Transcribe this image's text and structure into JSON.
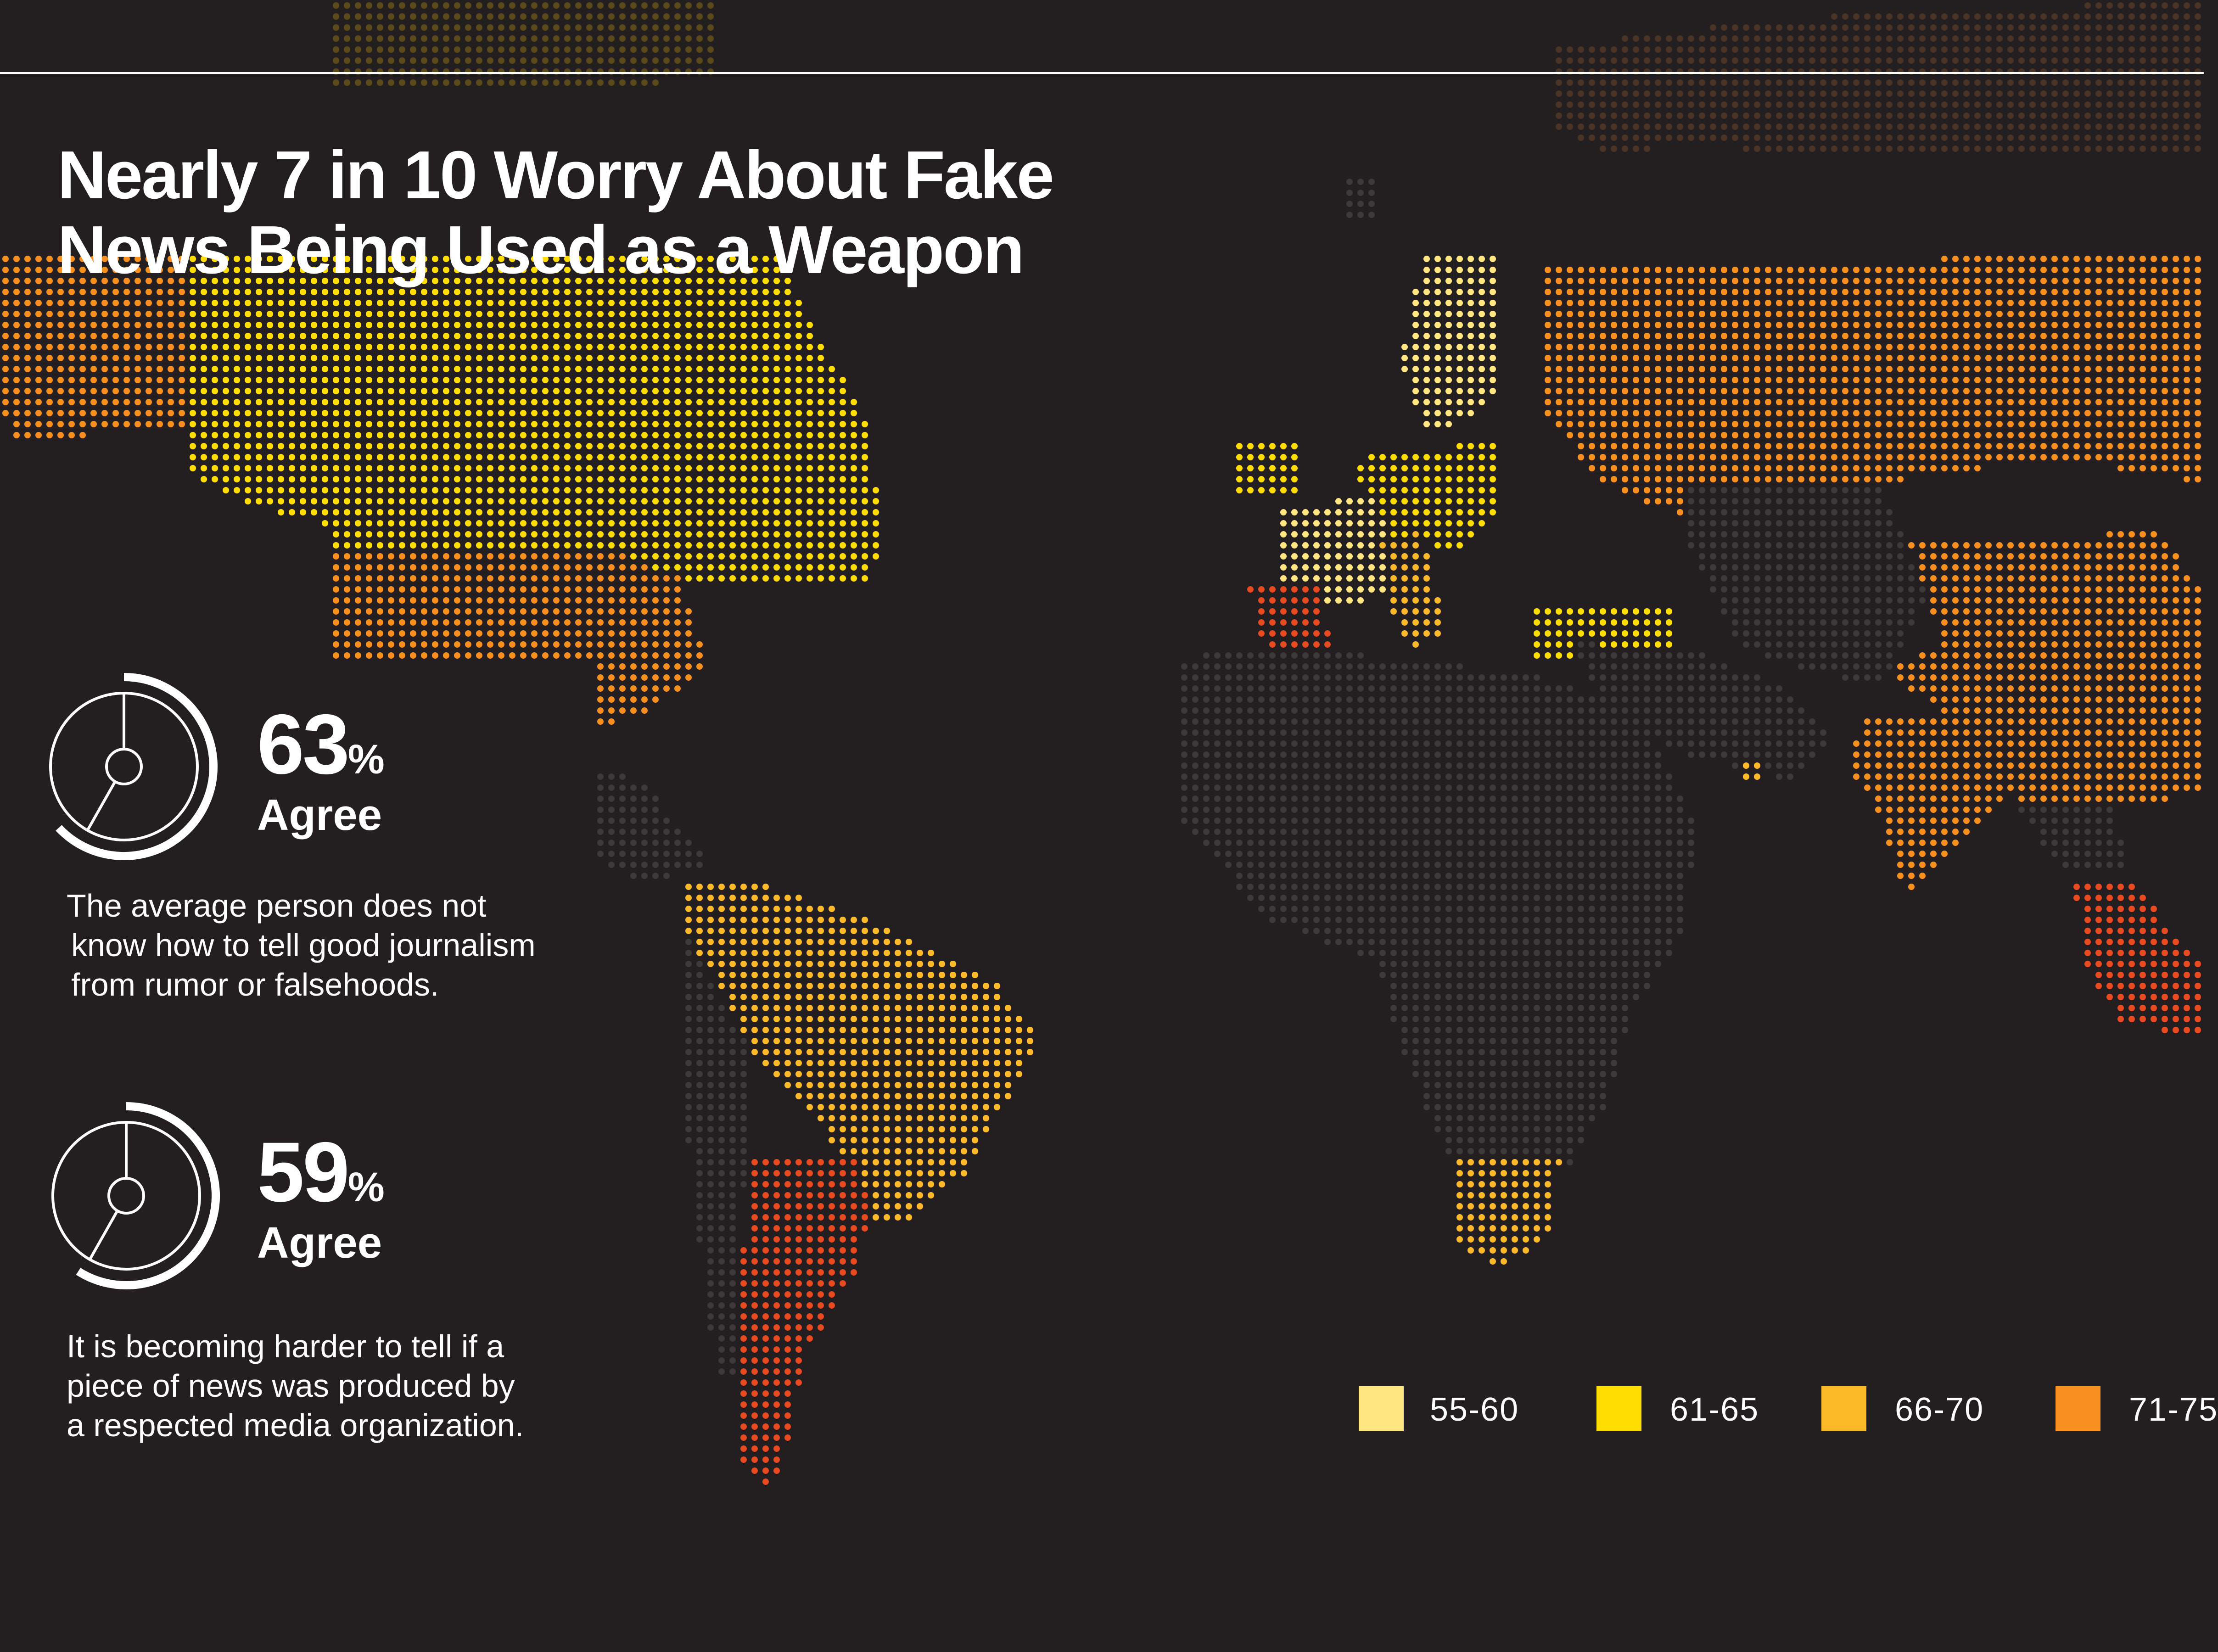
{
  "title": {
    "line1": "Nearly 7 in 10 Worry About Fake",
    "line2": "News Being Used as a Weapon"
  },
  "stats": [
    {
      "value": "63",
      "unit": "%",
      "label": "Agree",
      "fraction": 0.63,
      "description": [
        "The average person does not",
        "know how to tell good journalism",
        "from rumor or falsehoods."
      ]
    },
    {
      "value": "59",
      "unit": "%",
      "label": "Agree",
      "fraction": 0.59,
      "description": [
        "It is becoming harder to tell if a",
        "piece of news was produced by",
        "a respected media organization."
      ]
    }
  ],
  "legend": [
    {
      "label": "55-60",
      "color": "#ffe680"
    },
    {
      "label": "61-65",
      "color": "#ffdd00"
    },
    {
      "label": "66-70",
      "color": "#fbb827"
    },
    {
      "label": "71-75",
      "color": "#f7901e"
    }
  ],
  "colors": {
    "background": "#231f20",
    "no_data": "#3d3a3a",
    "dark_gold": "#5b4a1a",
    "dark_brown": "#4a3426",
    "highest": "#ea4a22"
  }
}
